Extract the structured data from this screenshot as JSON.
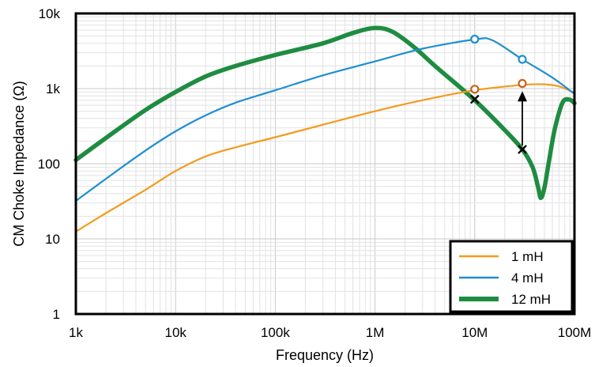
{
  "chart_data": {
    "type": "line",
    "xlabel": "Frequency (Hz)",
    "ylabel": "CM Choke Impedance (Ω)",
    "xscale": "log",
    "yscale": "log",
    "xlim": [
      1000,
      100000000
    ],
    "ylim": [
      1,
      10000
    ],
    "x_ticks": [
      {
        "value": 1000,
        "label": "1k"
      },
      {
        "value": 10000,
        "label": "10k"
      },
      {
        "value": 100000,
        "label": "100k"
      },
      {
        "value": 1000000,
        "label": "1M"
      },
      {
        "value": 10000000,
        "label": "10M"
      },
      {
        "value": 100000000,
        "label": "100M"
      }
    ],
    "y_ticks": [
      {
        "value": 1,
        "label": "1"
      },
      {
        "value": 10,
        "label": "10"
      },
      {
        "value": 100,
        "label": "100"
      },
      {
        "value": 1000,
        "label": "1k"
      },
      {
        "value": 10000,
        "label": "10k"
      }
    ],
    "grid": "on (major and minor)",
    "legend_placement": "bottom-right",
    "series": [
      {
        "name": "1 mH",
        "color": "#F59A1E",
        "points": [
          [
            1000,
            12.5
          ],
          [
            2000,
            22
          ],
          [
            5000,
            45
          ],
          [
            10000,
            80
          ],
          [
            20000,
            125
          ],
          [
            40000,
            165
          ],
          [
            100000,
            225
          ],
          [
            300000,
            330
          ],
          [
            1000000,
            500
          ],
          [
            3000000,
            700
          ],
          [
            10000000,
            950
          ],
          [
            30000000,
            1120
          ],
          [
            50000000,
            1140
          ],
          [
            70000000,
            1070
          ],
          [
            100000000,
            880
          ]
        ]
      },
      {
        "name": "4 mH",
        "color": "#1F8FD0",
        "points": [
          [
            1000,
            32
          ],
          [
            2000,
            63
          ],
          [
            5000,
            150
          ],
          [
            10000,
            270
          ],
          [
            20000,
            440
          ],
          [
            40000,
            650
          ],
          [
            100000,
            950
          ],
          [
            300000,
            1500
          ],
          [
            1000000,
            2300
          ],
          [
            3000000,
            3400
          ],
          [
            10000000,
            4500
          ],
          [
            15000000,
            4400
          ],
          [
            30000000,
            2450
          ],
          [
            60000000,
            1400
          ],
          [
            100000000,
            850
          ]
        ]
      },
      {
        "name": "12 mH",
        "color": "#1E8C41",
        "points": [
          [
            1000,
            112
          ],
          [
            2000,
            220
          ],
          [
            5000,
            520
          ],
          [
            10000,
            900
          ],
          [
            20000,
            1450
          ],
          [
            40000,
            2000
          ],
          [
            100000,
            2800
          ],
          [
            300000,
            4000
          ],
          [
            600000,
            5500
          ],
          [
            1000000,
            6400
          ],
          [
            1500000,
            5700
          ],
          [
            2500000,
            3500
          ],
          [
            4000000,
            2000
          ],
          [
            10000000,
            700
          ],
          [
            20000000,
            280
          ],
          [
            30000000,
            155
          ],
          [
            38000000,
            90
          ],
          [
            43000000,
            50
          ],
          [
            46000000,
            35
          ],
          [
            50000000,
            48
          ],
          [
            55000000,
            100
          ],
          [
            62000000,
            250
          ],
          [
            70000000,
            480
          ],
          [
            78000000,
            690
          ],
          [
            90000000,
            710
          ],
          [
            100000000,
            640
          ]
        ]
      }
    ],
    "markers": {
      "circles": [
        {
          "x": 10000000,
          "y": 4550,
          "color": "#1F8FD0"
        },
        {
          "x": 30000000,
          "y": 2450,
          "color": "#1F8FD0"
        },
        {
          "x": 10000000,
          "y": 980,
          "color": "#C8621A"
        },
        {
          "x": 30000000,
          "y": 1170,
          "color": "#C8621A"
        }
      ],
      "crosses": [
        {
          "x": 10000000,
          "y": 720
        },
        {
          "x": 30000000,
          "y": 155
        }
      ],
      "arrow": {
        "x": 30000000,
        "from_y": 175,
        "to_y": 880
      }
    }
  }
}
